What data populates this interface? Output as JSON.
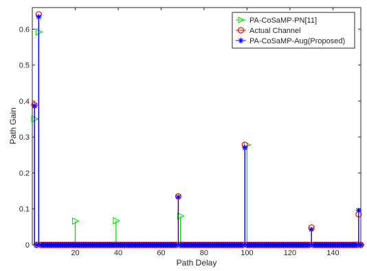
{
  "chart_data": {
    "type": "stem",
    "xlabel": "Path Delay",
    "ylabel": "Path Gain",
    "xlim": [
      0,
      153
    ],
    "ylim": [
      0,
      0.66
    ],
    "xticks": [
      20,
      40,
      60,
      80,
      100,
      120,
      140
    ],
    "yticks": [
      0,
      0.1,
      0.2,
      0.3,
      0.4,
      0.5,
      0.6
    ],
    "ytick_labels": [
      "0",
      "0.1",
      "0.2",
      "0.3",
      "0.4",
      "0.5",
      "0.6"
    ],
    "grid": false,
    "legend_position": "top-right",
    "baseline_x_range": [
      1,
      153
    ],
    "series": [
      {
        "name": "PA-CoSaMP-PN[11]",
        "color": "#00dd00",
        "marker": "triangle-right",
        "draw_baseline": false,
        "points": [
          [
            1,
            0.35
          ],
          [
            3,
            0.592
          ],
          [
            20,
            0.066
          ],
          [
            39,
            0.067
          ],
          [
            69,
            0.08
          ],
          [
            100,
            0.278
          ],
          [
            153,
            0.0
          ]
        ]
      },
      {
        "name": "Actual Channel",
        "color": "#ff0000",
        "marker": "circle",
        "draw_baseline": true,
        "points": [
          [
            1,
            0.389
          ],
          [
            3,
            0.641
          ],
          [
            68,
            0.135
          ],
          [
            99,
            0.278
          ],
          [
            130,
            0.048
          ],
          [
            152,
            0.085
          ]
        ]
      },
      {
        "name": "PA-CoSaMP-Aug(Proposed)",
        "color": "#0000ff",
        "marker": "asterisk",
        "draw_baseline": true,
        "points": [
          [
            1,
            0.387
          ],
          [
            3,
            0.634
          ],
          [
            68,
            0.133
          ],
          [
            99,
            0.27
          ],
          [
            130,
            0.043
          ],
          [
            152,
            0.096
          ]
        ]
      }
    ]
  }
}
